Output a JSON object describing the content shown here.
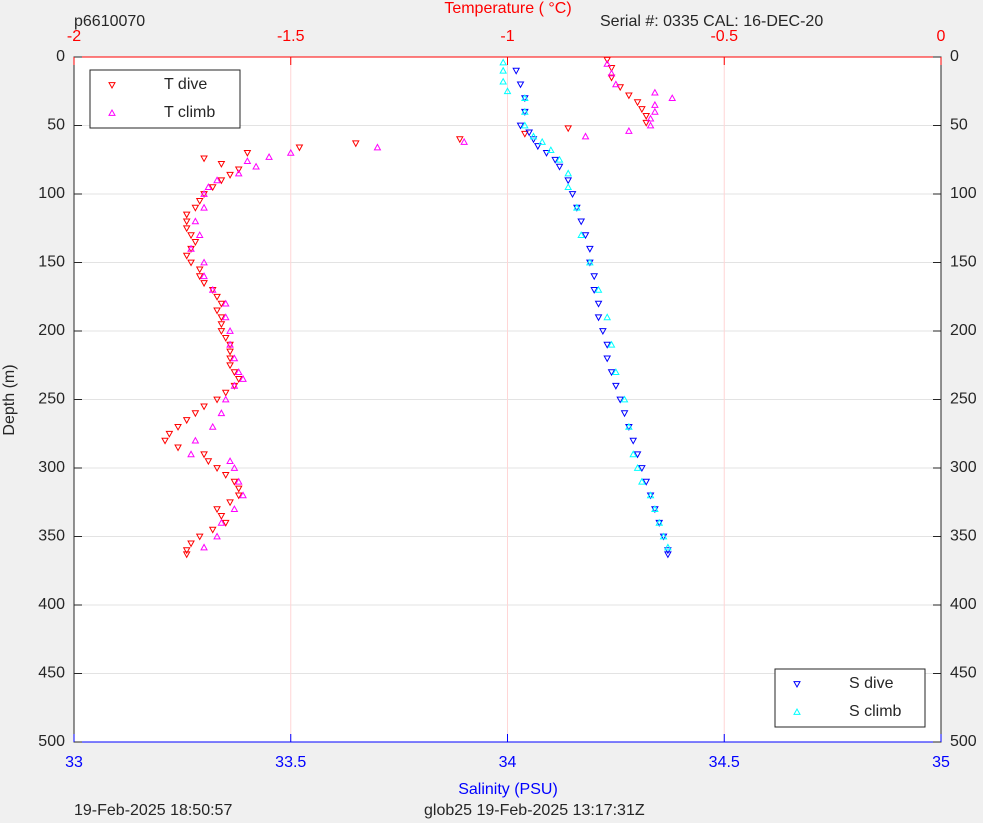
{
  "chart_data": {
    "type": "scatter",
    "header_left": "p6610070",
    "header_right": "Serial #: 0335  CAL: 16-DEC-20",
    "footer_left": "19-Feb-2025 18:50:57",
    "footer_right": "glob25 19-Feb-2025 13:17:31Z",
    "x_label": "Salinity (PSU)",
    "x2_label": "Temperature (   °C)",
    "y_label": "Depth (m)",
    "xlim": [
      33,
      35
    ],
    "xticks": [
      33,
      33.5,
      34,
      34.5,
      35
    ],
    "x2lim": [
      -2,
      0
    ],
    "x2ticks": [
      -2,
      -1.5,
      -1,
      -0.5,
      0
    ],
    "ylim": [
      0,
      500
    ],
    "yticks": [
      0,
      50,
      100,
      150,
      200,
      250,
      300,
      350,
      400,
      450,
      500
    ],
    "y_reversed": true,
    "grid": true,
    "series": [
      {
        "name": "T dive",
        "color": "#ff0000",
        "marker": "down",
        "axis": "x2",
        "legend": "upper left",
        "y": [
          2,
          8,
          15,
          22,
          28,
          33,
          38,
          43,
          48,
          52,
          56,
          60,
          63,
          66,
          70,
          74,
          78,
          82,
          86,
          90,
          95,
          100,
          105,
          110,
          115,
          120,
          125,
          130,
          135,
          140,
          145,
          150,
          155,
          160,
          165,
          170,
          175,
          180,
          185,
          190,
          195,
          200,
          205,
          210,
          215,
          220,
          225,
          230,
          235,
          240,
          245,
          250,
          255,
          260,
          265,
          270,
          275,
          280,
          285,
          290,
          295,
          300,
          305,
          310,
          315,
          320,
          325,
          330,
          335,
          340,
          345,
          350,
          355,
          360,
          363
        ],
        "x": [
          -0.77,
          -0.76,
          -0.76,
          -0.74,
          -0.72,
          -0.7,
          -0.69,
          -0.68,
          -0.68,
          -0.86,
          -0.96,
          -1.11,
          -1.35,
          -1.48,
          -1.6,
          -1.7,
          -1.66,
          -1.62,
          -1.64,
          -1.66,
          -1.68,
          -1.7,
          -1.71,
          -1.72,
          -1.74,
          -1.74,
          -1.74,
          -1.73,
          -1.72,
          -1.73,
          -1.74,
          -1.73,
          -1.71,
          -1.71,
          -1.7,
          -1.68,
          -1.67,
          -1.66,
          -1.67,
          -1.66,
          -1.66,
          -1.66,
          -1.65,
          -1.64,
          -1.64,
          -1.64,
          -1.64,
          -1.63,
          -1.62,
          -1.63,
          -1.65,
          -1.67,
          -1.7,
          -1.72,
          -1.74,
          -1.76,
          -1.78,
          -1.79,
          -1.76,
          -1.7,
          -1.69,
          -1.67,
          -1.65,
          -1.63,
          -1.62,
          -1.62,
          -1.64,
          -1.67,
          -1.66,
          -1.65,
          -1.68,
          -1.71,
          -1.73,
          -1.74,
          -1.74
        ]
      },
      {
        "name": "T climb",
        "color": "#ff00ff",
        "marker": "up",
        "axis": "x2",
        "legend": "upper left",
        "y": [
          5,
          12,
          20,
          26,
          30,
          35,
          40,
          45,
          50,
          54,
          58,
          62,
          66,
          70,
          73,
          76,
          80,
          85,
          90,
          95,
          100,
          110,
          120,
          130,
          140,
          150,
          160,
          170,
          180,
          190,
          200,
          210,
          220,
          230,
          235,
          240,
          250,
          260,
          270,
          280,
          290,
          295,
          300,
          310,
          320,
          330,
          340,
          350,
          358
        ],
        "x": [
          -0.77,
          -0.76,
          -0.75,
          -0.66,
          -0.62,
          -0.66,
          -0.66,
          -0.67,
          -0.67,
          -0.72,
          -0.82,
          -1.1,
          -1.3,
          -1.5,
          -1.55,
          -1.6,
          -1.58,
          -1.62,
          -1.67,
          -1.69,
          -1.7,
          -1.7,
          -1.72,
          -1.71,
          -1.73,
          -1.7,
          -1.7,
          -1.68,
          -1.65,
          -1.65,
          -1.64,
          -1.64,
          -1.63,
          -1.62,
          -1.61,
          -1.63,
          -1.65,
          -1.66,
          -1.68,
          -1.72,
          -1.73,
          -1.64,
          -1.63,
          -1.62,
          -1.61,
          -1.63,
          -1.66,
          -1.67,
          -1.7
        ]
      },
      {
        "name": "S dive",
        "color": "#0000ff",
        "marker": "down",
        "axis": "x",
        "legend": "lower right",
        "y": [
          10,
          20,
          30,
          40,
          50,
          55,
          60,
          65,
          70,
          75,
          80,
          90,
          100,
          110,
          120,
          130,
          140,
          150,
          160,
          170,
          180,
          190,
          200,
          210,
          220,
          230,
          240,
          250,
          260,
          270,
          280,
          290,
          300,
          310,
          320,
          330,
          340,
          350,
          360,
          363
        ],
        "x": [
          34.02,
          34.03,
          34.04,
          34.04,
          34.03,
          34.05,
          34.06,
          34.07,
          34.09,
          34.11,
          34.12,
          34.14,
          34.15,
          34.16,
          34.17,
          34.18,
          34.19,
          34.19,
          34.2,
          34.2,
          34.21,
          34.21,
          34.22,
          34.23,
          34.23,
          34.24,
          34.25,
          34.26,
          34.27,
          34.28,
          34.29,
          34.3,
          34.31,
          34.32,
          34.33,
          34.34,
          34.35,
          34.36,
          34.37,
          34.37
        ]
      },
      {
        "name": "S climb",
        "color": "#00ffff",
        "marker": "up",
        "axis": "x",
        "legend": "lower right",
        "y": [
          4,
          10,
          18,
          25,
          30,
          40,
          50,
          58,
          62,
          68,
          75,
          85,
          95,
          110,
          130,
          150,
          170,
          190,
          210,
          230,
          250,
          270,
          290,
          300,
          310,
          320,
          330,
          340,
          350,
          358
        ],
        "x": [
          33.99,
          33.99,
          33.99,
          34.0,
          34.04,
          34.04,
          34.04,
          34.06,
          34.08,
          34.1,
          34.12,
          34.14,
          34.14,
          34.16,
          34.17,
          34.19,
          34.21,
          34.23,
          34.24,
          34.25,
          34.27,
          34.28,
          34.29,
          34.3,
          34.31,
          34.33,
          34.34,
          34.35,
          34.36,
          34.37
        ]
      }
    ]
  }
}
